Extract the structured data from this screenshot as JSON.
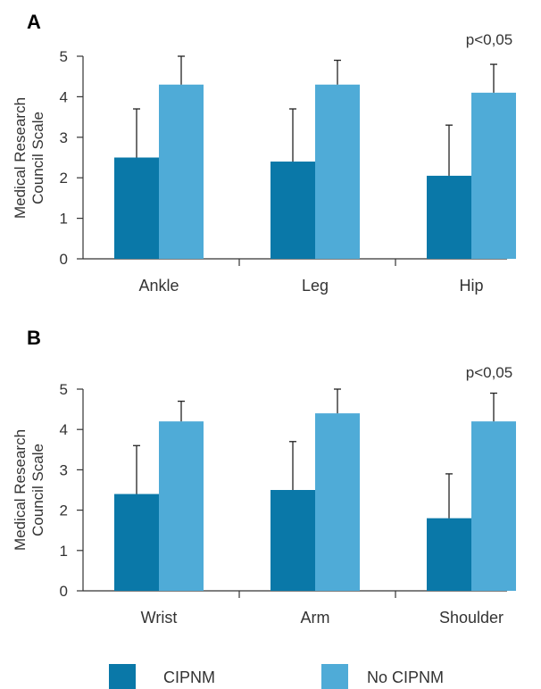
{
  "chart_data": [
    {
      "type": "bar",
      "panel_label": "A",
      "ylabel_lines": [
        "Medical Research",
        "Council Scale"
      ],
      "categories": [
        "Ankle",
        "Leg",
        "Hip"
      ],
      "ylim": [
        0,
        5
      ],
      "yticks": [
        0,
        1,
        2,
        3,
        4,
        5
      ],
      "grid": false,
      "series": [
        {
          "name": "CIPNM",
          "values": [
            2.5,
            2.4,
            2.05
          ],
          "error_upper": [
            3.7,
            3.7,
            3.3
          ]
        },
        {
          "name": "No CIPNM",
          "values": [
            4.3,
            4.3,
            4.1
          ],
          "error_upper": [
            5.0,
            4.9,
            4.8
          ]
        }
      ],
      "annotations": [
        {
          "category": "Hip",
          "text": "p<0,05"
        }
      ]
    },
    {
      "type": "bar",
      "panel_label": "B",
      "ylabel_lines": [
        "Medical Research",
        "Council Scale"
      ],
      "categories": [
        "Wrist",
        "Arm",
        "Shoulder"
      ],
      "ylim": [
        0,
        5
      ],
      "yticks": [
        0,
        1,
        2,
        3,
        4,
        5
      ],
      "grid": false,
      "series": [
        {
          "name": "CIPNM",
          "values": [
            2.4,
            2.5,
            1.8
          ],
          "error_upper": [
            3.6,
            3.7,
            2.9
          ]
        },
        {
          "name": "No CIPNM",
          "values": [
            4.2,
            4.4,
            4.2
          ],
          "error_upper": [
            4.7,
            5.0,
            4.9
          ]
        }
      ],
      "annotations": [
        {
          "category": "Shoulder",
          "text": "p<0,05"
        }
      ]
    }
  ],
  "legend": {
    "placement": "bottom",
    "items": [
      {
        "label": "CIPNM",
        "color": "#0a78a8"
      },
      {
        "label": "No CIPNM",
        "color": "#4fabd7"
      }
    ]
  },
  "colors": {
    "cipnm": "#0a78a8",
    "no_cipnm": "#4fabd7",
    "axis": "#333333"
  }
}
